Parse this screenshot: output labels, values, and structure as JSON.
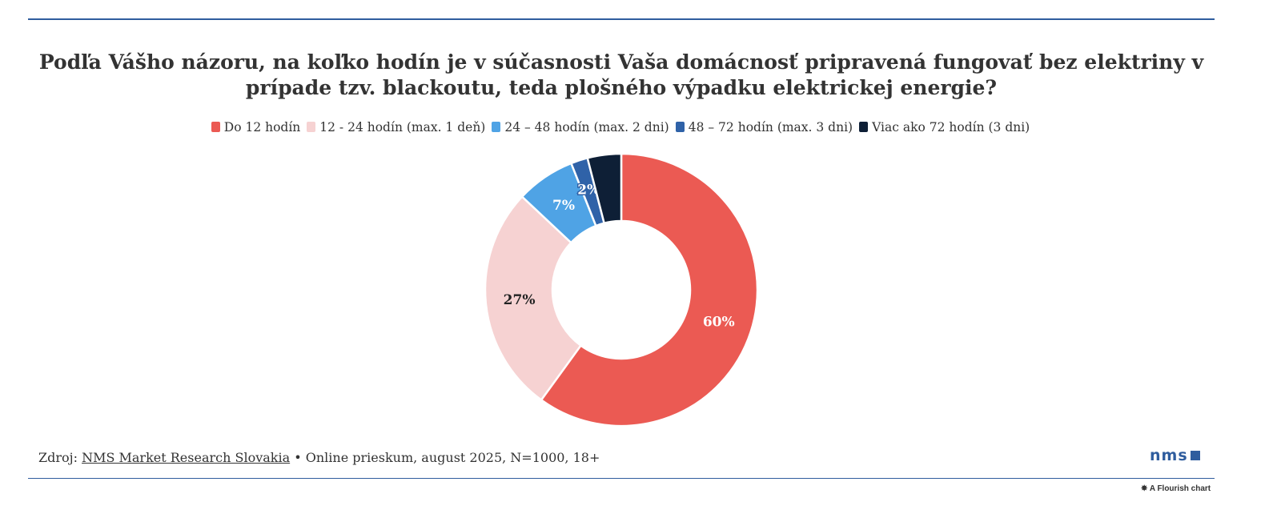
{
  "title": "Podľa Vášho názoru, na koľko hodín je v súčasnosti Vaša domácnosť pripravená fungovať bez elektriny v prípade tzv. blackoutu, teda plošného výpadku elektrickej energie?",
  "chart_data": {
    "type": "pie",
    "donut": true,
    "legend_position": "top",
    "categories": [
      "Do 12 hodín",
      "12 - 24 hodín (max. 1 deň)",
      "24 – 48 hodín (max. 2 dni)",
      "48 – 72 hodín (max. 3 dni)",
      "Viac ako 72 hodín (3 dni)"
    ],
    "values": [
      60,
      27,
      7,
      2,
      4
    ],
    "labels": [
      "60%",
      "27%",
      "7%",
      "2%",
      null
    ],
    "colors": [
      "#eb5a53",
      "#f6d2d2",
      "#4fa3e5",
      "#2f62a8",
      "#0e1f36"
    ],
    "label_colors": [
      "#ffffff",
      "#222222",
      "#ffffff",
      "#ffffff",
      "#ffffff"
    ]
  },
  "footer": {
    "source_prefix": "Zdroj: ",
    "source_link": "NMS Market Research Slovakia",
    "separator": " • ",
    "note": "Online prieskum, august 2025, N=1000, 18+"
  },
  "logo": "nms",
  "flourish": "A Flourish chart"
}
